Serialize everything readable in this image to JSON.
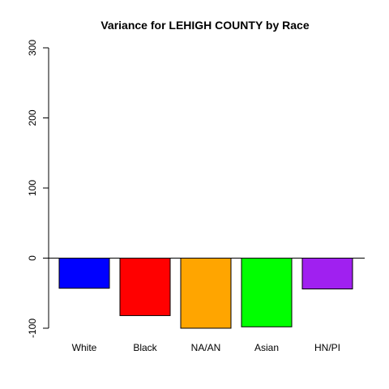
{
  "chart_data": {
    "type": "bar",
    "title": "Variance for LEHIGH COUNTY by Race",
    "xlabel": "",
    "ylabel": "",
    "categories": [
      "White",
      "Black",
      "NA/AN",
      "Asian",
      "HN/PI"
    ],
    "values": [
      -43,
      -82,
      -100,
      -98,
      -44
    ],
    "colors": [
      "#0000ff",
      "#ff0000",
      "#ffa500",
      "#00ff00",
      "#a020f0"
    ],
    "ylim": [
      -100,
      300
    ],
    "yticks": [
      -100,
      0,
      100,
      200,
      300
    ],
    "grid": false,
    "zero_line": true
  }
}
